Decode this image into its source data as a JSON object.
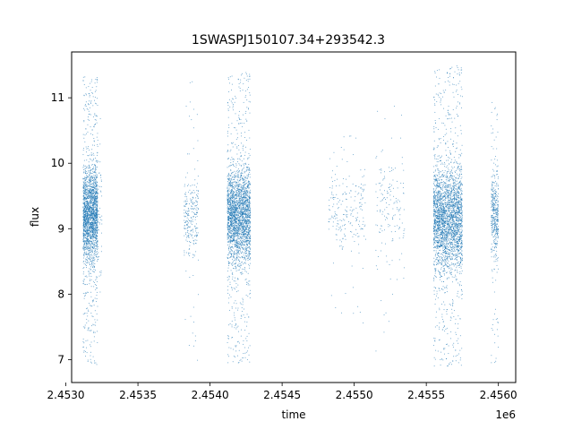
{
  "chart_data": {
    "type": "scatter",
    "title": "1SWASPJ150107.34+293542.3",
    "xlabel": "time",
    "ylabel": "flux",
    "x_offset_label": "1e6",
    "xlim": [
      2.45304,
      2.45612
    ],
    "ylim": [
      6.65,
      11.7
    ],
    "x_ticks": [
      2.453,
      2.4535,
      2.454,
      2.4545,
      2.455,
      2.4555,
      2.456
    ],
    "x_tick_labels": [
      "2.4530",
      "2.4535",
      "2.4540",
      "2.4545",
      "2.4550",
      "2.4555",
      "2.4560"
    ],
    "y_ticks": [
      7,
      8,
      9,
      10,
      11
    ],
    "y_tick_labels": [
      "7",
      "8",
      "9",
      "10",
      "11"
    ],
    "grid": false,
    "marker_color": "#1f77b4",
    "point_groups": [
      {
        "x_range": [
          2.45312,
          2.45322
        ],
        "count": 2200,
        "median": 9.2,
        "spread": 0.35,
        "tail_low": 6.9,
        "tail_high": 11.35,
        "tail_frac": 0.18
      },
      {
        "x_range": [
          2.45322,
          2.45325
        ],
        "count": 60,
        "median": 9.1,
        "spread": 0.5,
        "tail_low": 7.6,
        "tail_high": 11.4,
        "tail_frac": 0.2
      },
      {
        "x_range": [
          2.45382,
          2.45392
        ],
        "count": 260,
        "median": 9.15,
        "spread": 0.3,
        "tail_low": 6.9,
        "tail_high": 11.3,
        "tail_frac": 0.12
      },
      {
        "x_range": [
          2.45412,
          2.45428
        ],
        "count": 2600,
        "median": 9.2,
        "spread": 0.35,
        "tail_low": 6.95,
        "tail_high": 11.4,
        "tail_frac": 0.18
      },
      {
        "x_range": [
          2.45482,
          2.45508
        ],
        "count": 220,
        "median": 9.25,
        "spread": 0.3,
        "tail_low": 7.5,
        "tail_high": 10.45,
        "tail_frac": 0.15
      },
      {
        "x_range": [
          2.45515,
          2.45535
        ],
        "count": 160,
        "median": 9.4,
        "spread": 0.4,
        "tail_low": 6.85,
        "tail_high": 10.9,
        "tail_frac": 0.2
      },
      {
        "x_range": [
          2.45555,
          2.45575
        ],
        "count": 3000,
        "median": 9.15,
        "spread": 0.38,
        "tail_low": 6.9,
        "tail_high": 11.5,
        "tail_frac": 0.18
      },
      {
        "x_range": [
          2.45595,
          2.456
        ],
        "count": 420,
        "median": 9.2,
        "spread": 0.3,
        "tail_low": 6.95,
        "tail_high": 11.0,
        "tail_frac": 0.2
      }
    ]
  }
}
